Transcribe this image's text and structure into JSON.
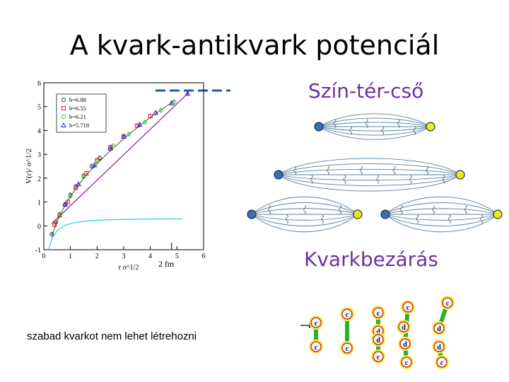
{
  "slide": {
    "title": "A kvark-antikvark potenciál",
    "flux_tube_heading": "Szín-tér-cső",
    "confinement_heading": "Kvarkbezárás",
    "caption": "szabad kvarkot nem lehet létrehozni"
  },
  "colors": {
    "heading": "#7030a0",
    "linear_fit": "#8b1a8b",
    "coulomb_curve": "#22d3d8",
    "dashed_marker": "#1e5aa8",
    "quark": "#3a6db5",
    "antiquark": "#e8e820",
    "tube": "#5a7fa0"
  },
  "chart_data": {
    "type": "scatter",
    "xlabel": "r σ^1/2",
    "ylabel": "V(r)/ σ^1/2",
    "xlim": [
      0,
      6
    ],
    "ylim": [
      -1,
      6
    ],
    "xticks": [
      0,
      1,
      2,
      3,
      4,
      5,
      6
    ],
    "yticks": [
      -1,
      0,
      1,
      2,
      3,
      4,
      5,
      6
    ],
    "annotation": "2 fm",
    "annotation_x": 4.8,
    "legend_position": "top-left",
    "grid": false,
    "series": [
      {
        "name": "b=6.88",
        "marker": "circle",
        "color": "#333333",
        "x": [
          0.3,
          0.45,
          0.6,
          0.8,
          1.0,
          1.2,
          1.5,
          1.8,
          2.1
        ],
        "y": [
          -0.35,
          0.15,
          0.45,
          0.9,
          1.3,
          1.65,
          2.1,
          2.5,
          2.85
        ]
      },
      {
        "name": "b=6.55",
        "marker": "square",
        "color": "#d62020",
        "x": [
          0.4,
          0.6,
          0.9,
          1.2,
          1.6,
          2.0,
          2.5,
          3.0,
          3.5,
          4.0
        ],
        "y": [
          0.05,
          0.45,
          1.0,
          1.6,
          2.2,
          2.75,
          3.3,
          3.75,
          4.2,
          4.6
        ]
      },
      {
        "name": "b=6.21",
        "marker": "circle",
        "color": "#34c434",
        "x": [
          0.6,
          1.0,
          1.5,
          2.0,
          2.6,
          3.2,
          3.8,
          4.4,
          4.9
        ],
        "y": [
          0.5,
          1.25,
          2.05,
          2.7,
          3.35,
          3.85,
          4.35,
          4.85,
          5.2
        ]
      },
      {
        "name": "b=5.718",
        "marker": "triangle",
        "color": "#2424c8",
        "x": [
          0.8,
          1.3,
          1.9,
          2.5,
          3.0,
          3.6,
          4.2,
          4.8,
          5.4
        ],
        "y": [
          0.9,
          1.75,
          2.55,
          3.25,
          3.75,
          4.25,
          4.75,
          5.15,
          5.55
        ]
      }
    ],
    "fits": [
      {
        "x": [
          0.3,
          5.45
        ],
        "y": [
          0.1,
          5.6
        ]
      },
      {
        "x": [
          0.18,
          0.3,
          0.5,
          0.8,
          1.2,
          1.8,
          2.5,
          3.5,
          4.5,
          5.2
        ],
        "y": [
          -1.0,
          -0.55,
          -0.2,
          0.03,
          0.15,
          0.22,
          0.26,
          0.28,
          0.29,
          0.29
        ]
      }
    ]
  }
}
